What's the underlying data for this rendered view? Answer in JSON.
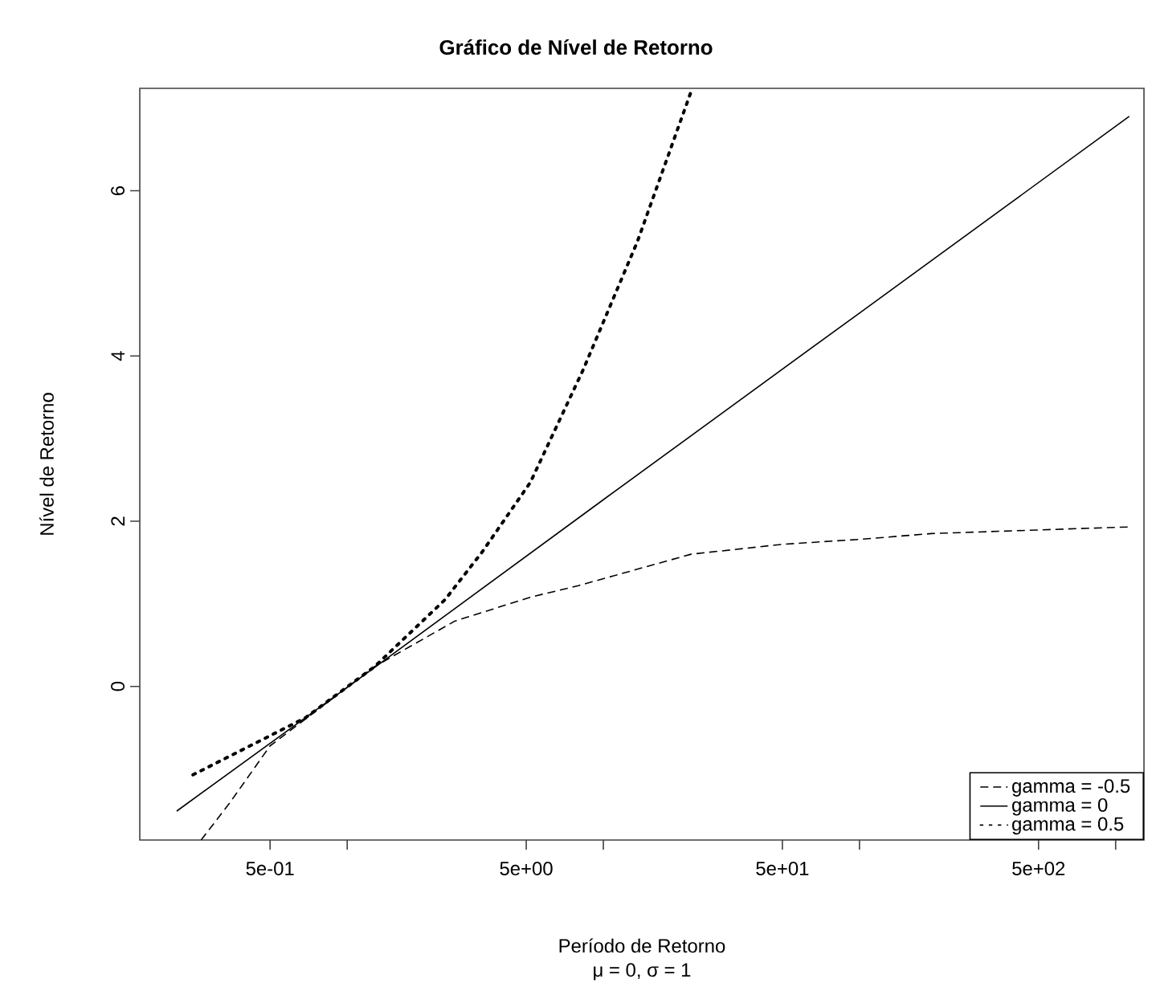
{
  "chart_data": {
    "type": "line",
    "title": "Gráfico de Nível de Retorno",
    "xlabel": "Período de Retorno",
    "ylabel": "Nível de Retorno",
    "annotations": [
      "μ = 0, σ = 1"
    ],
    "log": "x",
    "xlim": [
      0.155,
      1290
    ],
    "ylim": [
      -1.86,
      7.24
    ],
    "xticks": [
      {
        "value": 0.5,
        "label": "5e-01"
      },
      {
        "value": 1,
        "label": null
      },
      {
        "value": 5,
        "label": "5e+00"
      },
      {
        "value": 10,
        "label": null
      },
      {
        "value": 50,
        "label": "5e+01"
      },
      {
        "value": 100,
        "label": null
      },
      {
        "value": 500,
        "label": "5e+02"
      },
      {
        "value": 1000,
        "label": null
      }
    ],
    "yticks": [
      0,
      2,
      4,
      6
    ],
    "grid": false,
    "legend": "bottom right",
    "marker": "none",
    "series": [
      {
        "name": "gamma = -0.5",
        "color": "#000000",
        "line_style": "dashed",
        "x": [
          0.269,
          0.348,
          0.5,
          1.28,
          2.63,
          5.19,
          8.0,
          22.0,
          50,
          100,
          191,
          1114
        ],
        "values": [
          -1.86,
          -1.41,
          -0.72,
          0.24,
          0.79,
          1.08,
          1.22,
          1.6,
          1.72,
          1.78,
          1.85,
          1.93
        ]
      },
      {
        "name": "gamma = 0",
        "color": "#000000",
        "line_style": "solid",
        "x": [
          0.216,
          1.28,
          10,
          100,
          1130
        ],
        "values": [
          -1.51,
          0.23,
          2.26,
          4.52,
          6.9
        ]
      },
      {
        "name": "gamma = 0.5",
        "color": "#000000",
        "line_style": "dotted",
        "x": [
          0.25,
          0.687,
          1.28,
          2.41,
          3.37,
          5.19,
          8.36,
          13.6,
          22.0
        ],
        "values": [
          -1.07,
          -0.38,
          0.24,
          1.05,
          1.63,
          2.47,
          3.84,
          5.39,
          7.2
        ]
      }
    ]
  }
}
